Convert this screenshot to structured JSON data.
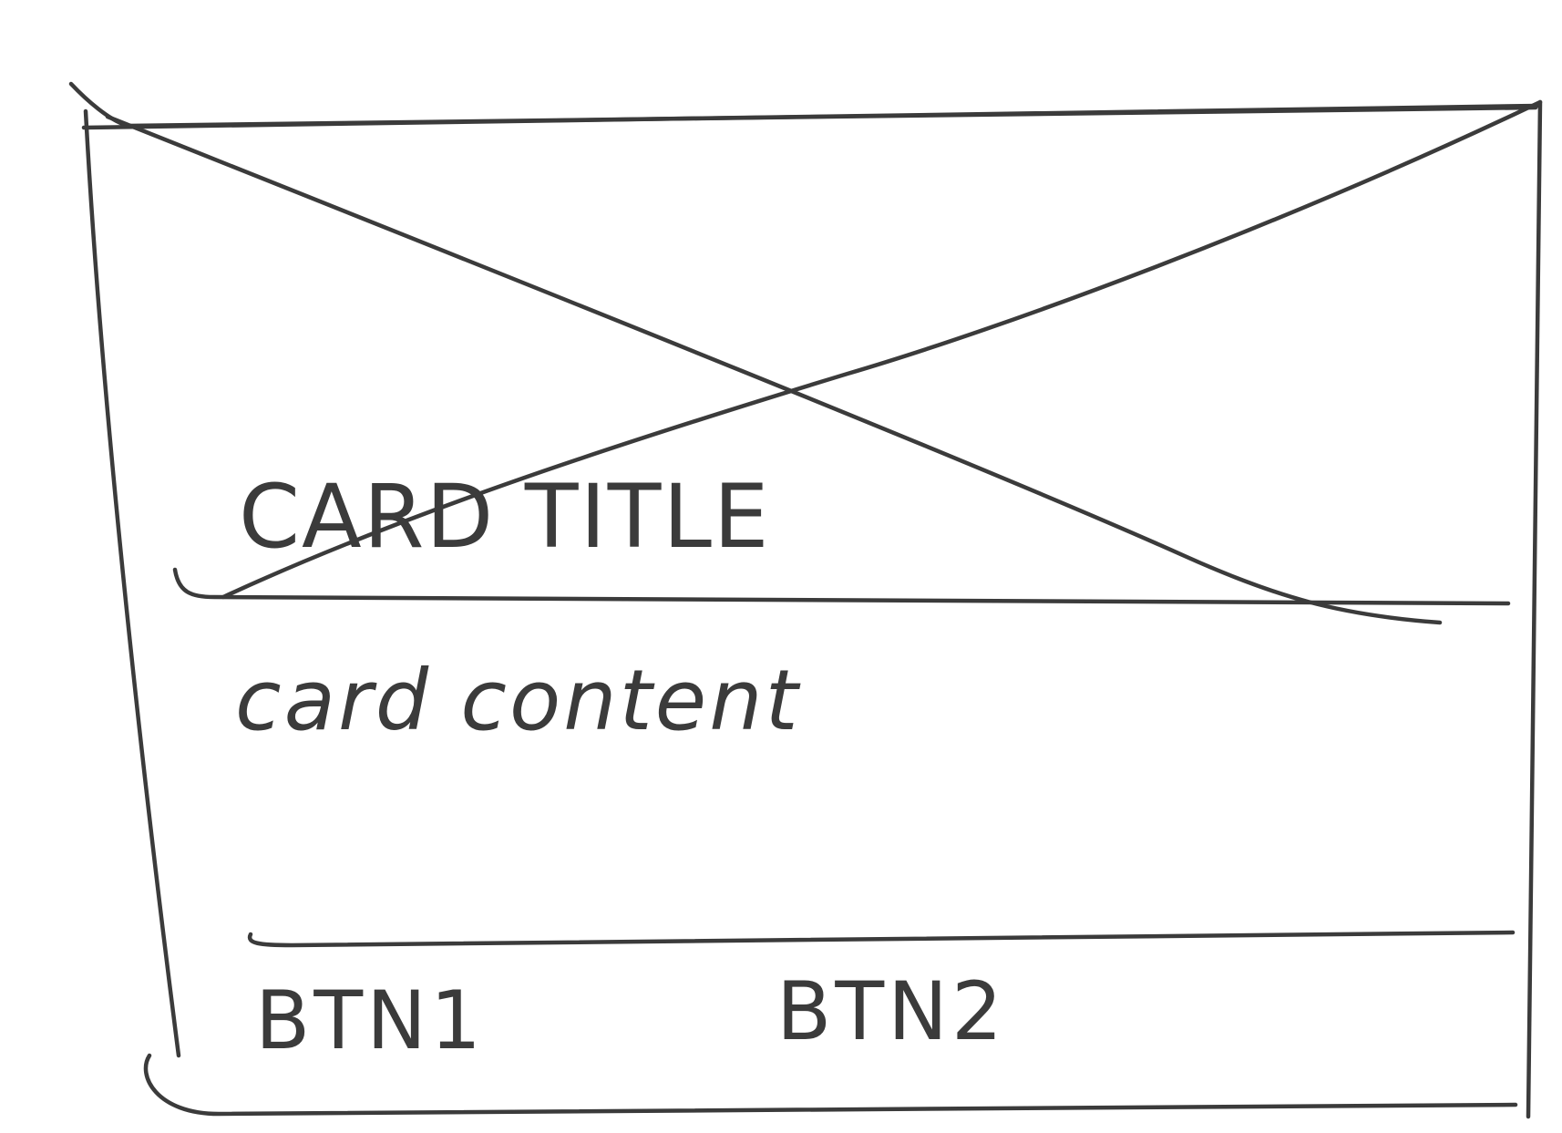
{
  "card": {
    "title": "CARD TITLE",
    "content": "card content",
    "actions": {
      "button_1_label": "BTN1",
      "button_2_label": "BTN2"
    },
    "media": {
      "type": "image-placeholder"
    }
  },
  "colors": {
    "ink": "#3b3b3b",
    "paper": "#ffffff"
  }
}
